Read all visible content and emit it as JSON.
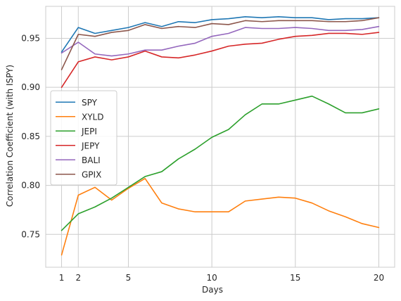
{
  "chart_data": {
    "type": "line",
    "title": "",
    "xlabel": "Days",
    "ylabel": "Correlation Coefficient (with ISPY)",
    "x": [
      1,
      2,
      3,
      4,
      5,
      6,
      7,
      8,
      9,
      10,
      11,
      12,
      13,
      14,
      15,
      16,
      17,
      18,
      19,
      20
    ],
    "xticks": [
      1,
      2,
      5,
      10,
      15,
      20
    ],
    "yticks": [
      0.75,
      0.8,
      0.85,
      0.9,
      0.95
    ],
    "ytick_labels": [
      "0.75",
      "0.80",
      "0.85",
      "0.90",
      "0.95"
    ],
    "xlim": [
      0.05,
      20.95
    ],
    "ylim": [
      0.7165,
      0.9826
    ],
    "grid": true,
    "legend_position": "center-left",
    "series": [
      {
        "name": "SPY",
        "color": "#1f77b4",
        "values": [
          0.936,
          0.961,
          0.955,
          0.958,
          0.961,
          0.966,
          0.962,
          0.967,
          0.966,
          0.969,
          0.97,
          0.972,
          0.971,
          0.972,
          0.971,
          0.971,
          0.969,
          0.97,
          0.97,
          0.971
        ]
      },
      {
        "name": "XYLD",
        "color": "#ff7f0e",
        "values": [
          0.729,
          0.79,
          0.798,
          0.785,
          0.797,
          0.807,
          0.782,
          0.776,
          0.773,
          0.773,
          0.773,
          0.784,
          0.786,
          0.788,
          0.787,
          0.782,
          0.774,
          0.768,
          0.761,
          0.757
        ]
      },
      {
        "name": "JEPI",
        "color": "#2ca02c",
        "values": [
          0.754,
          0.771,
          0.778,
          0.787,
          0.798,
          0.809,
          0.814,
          0.827,
          0.837,
          0.849,
          0.857,
          0.872,
          0.883,
          0.883,
          0.887,
          0.891,
          0.883,
          0.874,
          0.874,
          0.878
        ]
      },
      {
        "name": "JEPY",
        "color": "#d62728",
        "values": [
          0.9,
          0.926,
          0.931,
          0.928,
          0.931,
          0.937,
          0.931,
          0.93,
          0.933,
          0.937,
          0.942,
          0.944,
          0.945,
          0.949,
          0.952,
          0.953,
          0.955,
          0.955,
          0.954,
          0.956
        ]
      },
      {
        "name": "BALI",
        "color": "#9467bd",
        "values": [
          0.935,
          0.946,
          0.934,
          0.932,
          0.934,
          0.938,
          0.938,
          0.942,
          0.945,
          0.952,
          0.955,
          0.961,
          0.96,
          0.96,
          0.961,
          0.96,
          0.958,
          0.958,
          0.959,
          0.962
        ]
      },
      {
        "name": "GPIX",
        "color": "#8c564b",
        "values": [
          0.918,
          0.954,
          0.952,
          0.956,
          0.958,
          0.964,
          0.96,
          0.962,
          0.961,
          0.965,
          0.964,
          0.968,
          0.967,
          0.968,
          0.968,
          0.968,
          0.967,
          0.967,
          0.968,
          0.971
        ]
      }
    ]
  }
}
